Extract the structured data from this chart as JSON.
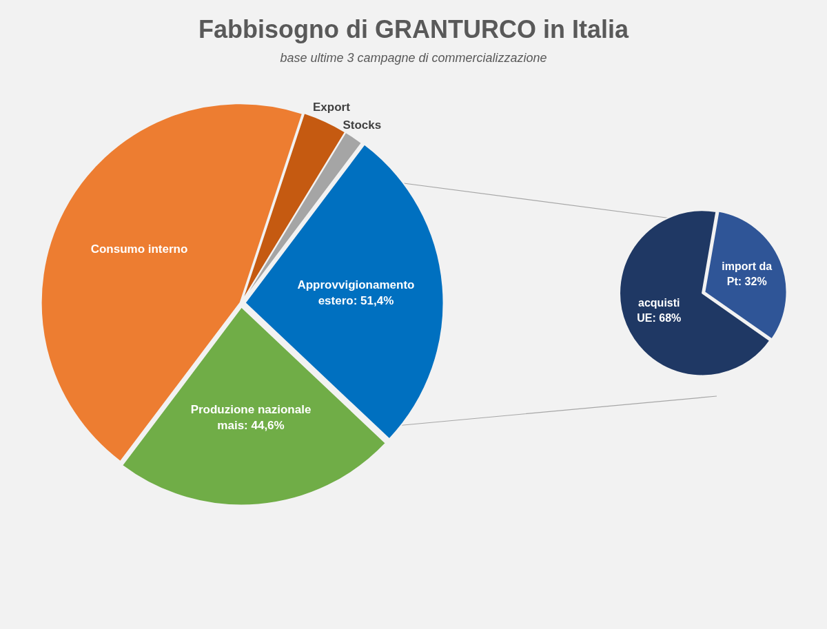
{
  "chart_data": [
    {
      "type": "pie",
      "title": "Fabbisogno di GRANTURCO in Italia",
      "subtitle": "base ultime 3 campagne di commercializzazione",
      "categories": [
        "Consumo interno",
        "Export",
        "Stocks",
        "Approvvigionamento estero: 51,4%",
        "Produzione nazionale mais: 44,6%"
      ],
      "values": [
        86,
        7,
        3,
        51.4,
        44.6
      ],
      "colors": [
        "#ed7d31",
        "#c55a11",
        "#a5a5a5",
        "#0070c0",
        "#70ad47"
      ]
    },
    {
      "type": "pie",
      "categories": [
        "acquisti UE: 68%",
        "import da Pt: 32%"
      ],
      "values": [
        68,
        32
      ],
      "colors": [
        "#1f3864",
        "#2f5597"
      ]
    }
  ]
}
